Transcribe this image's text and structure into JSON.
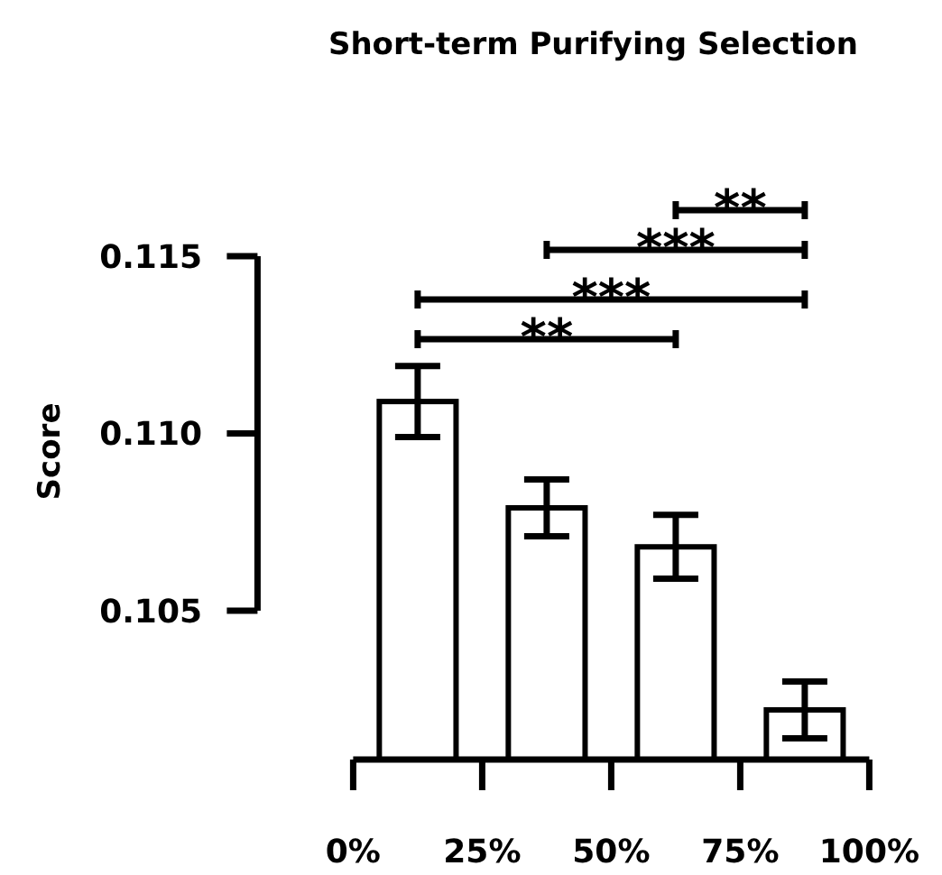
{
  "chart_data": {
    "type": "bar",
    "title": "Short-term Purifying Selection",
    "ylabel": "Score",
    "x": [
      12.5,
      37.5,
      62.5,
      87.5
    ],
    "values": [
      0.1109,
      0.1079,
      0.1068,
      0.1022
    ],
    "errors": [
      0.001,
      0.0008,
      0.0009,
      0.0008
    ],
    "color": "#ffffff",
    "xlim": [
      0,
      100
    ],
    "xticks": [
      {
        "value": 0,
        "label": "0%"
      },
      {
        "value": 25,
        "label": "25%"
      },
      {
        "value": 50,
        "label": "50%"
      },
      {
        "value": 75,
        "label": "75%"
      },
      {
        "value": 100,
        "label": "100%"
      }
    ],
    "ylim": [
      0.1008,
      0.115
    ],
    "yticks": [
      0.105,
      {
        "value": 0.11,
        "label": "0.110"
      },
      0.115
    ],
    "annotations": [
      "**",
      "***",
      "***",
      "**"
    ]
  }
}
